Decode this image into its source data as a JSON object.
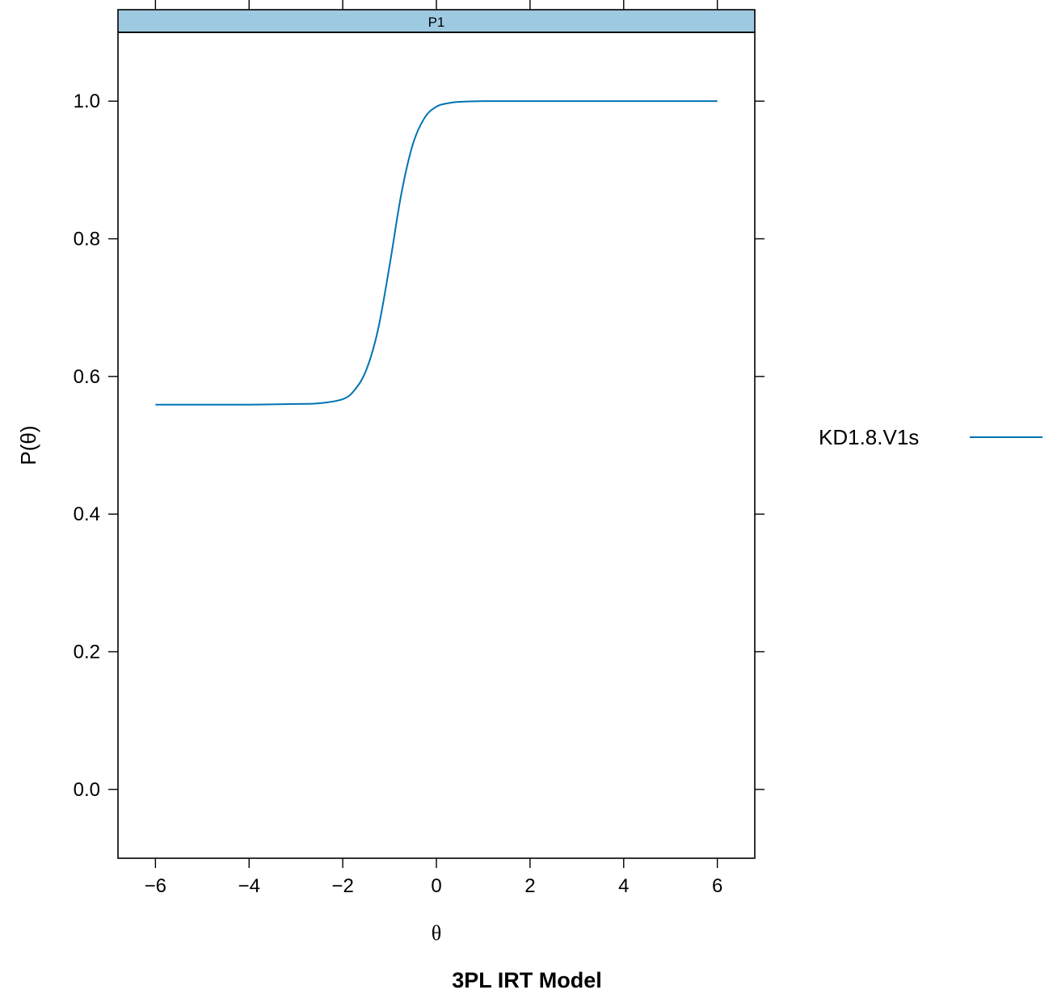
{
  "chart_data": {
    "type": "line",
    "strip_label": "P1",
    "xlabel": "θ",
    "ylabel": "P(θ)",
    "caption": "3PL IRT Model",
    "xlim": [
      -6.8,
      6.8
    ],
    "ylim": [
      -0.1,
      1.1
    ],
    "x_ticks": [
      -6,
      -4,
      -2,
      0,
      2,
      4,
      6
    ],
    "x_tick_labels": [
      "−6",
      "−4",
      "−2",
      "0",
      "2",
      "4",
      "6"
    ],
    "y_ticks": [
      0.0,
      0.2,
      0.4,
      0.6,
      0.8,
      1.0
    ],
    "y_tick_labels": [
      "0.0",
      "0.2",
      "0.4",
      "0.6",
      "0.8",
      "1.0"
    ],
    "legend_position": "right",
    "colors": {
      "series": "#0073b3",
      "strip": "#9ecae1"
    },
    "series": [
      {
        "name": "KD1.8.V1s",
        "x": [
          -6,
          -5,
          -4,
          -3,
          -2.5,
          -2,
          -1.75,
          -1.5,
          -1.25,
          -1,
          -0.75,
          -0.5,
          -0.25,
          0,
          0.25,
          0.5,
          1,
          1.5,
          2,
          3,
          4,
          5,
          6
        ],
        "y": [
          0.559,
          0.559,
          0.559,
          0.56,
          0.561,
          0.567,
          0.58,
          0.609,
          0.667,
          0.761,
          0.865,
          0.938,
          0.976,
          0.992,
          0.997,
          0.999,
          1.0,
          1.0,
          1.0,
          1.0,
          1.0,
          1.0,
          1.0
        ]
      }
    ]
  }
}
